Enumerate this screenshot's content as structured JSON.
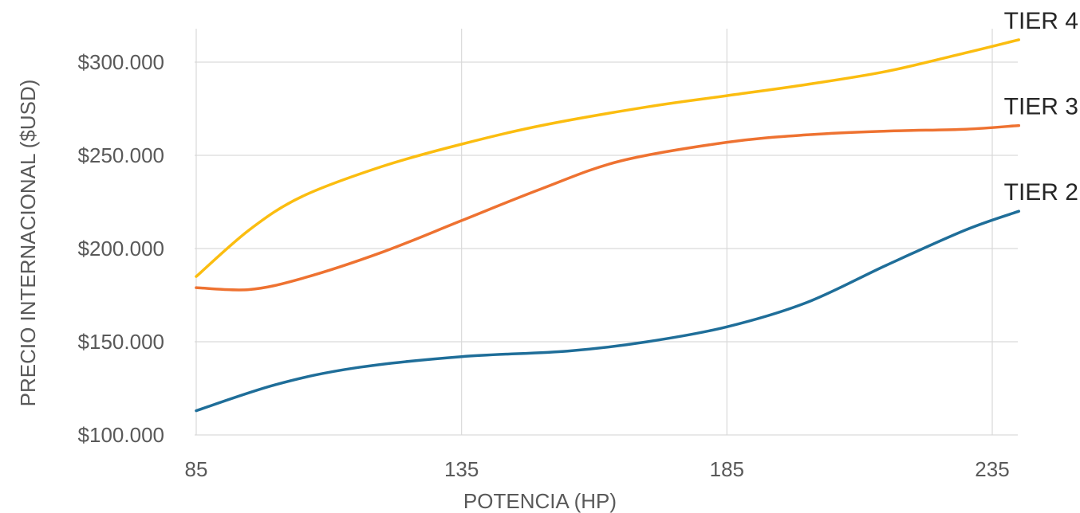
{
  "chart_data": {
    "type": "line",
    "title": "",
    "xlabel": "POTENCIA (HP)",
    "ylabel": "PRECIO INTERNACIONAL ($USD)",
    "xlim": [
      85,
      240
    ],
    "ylim": [
      100000,
      320000
    ],
    "x_ticks": [
      85,
      135,
      185,
      235
    ],
    "x_tick_labels": [
      "85",
      "135",
      "185",
      "235"
    ],
    "y_ticks": [
      100000,
      150000,
      200000,
      250000,
      300000
    ],
    "y_tick_labels": [
      "$100.000",
      "$150.000",
      "$200.000",
      "$250.000",
      "$300.000"
    ],
    "grid": true,
    "legend": "none",
    "series": [
      {
        "name": "TIER 2",
        "color": "#1f6e99",
        "x": [
          85,
          100,
          115,
          135,
          155,
          170,
          185,
          200,
          215,
          230,
          240
        ],
        "y": [
          113000,
          127000,
          136000,
          142000,
          145000,
          150000,
          158000,
          171000,
          191000,
          210000,
          220000
        ]
      },
      {
        "name": "TIER 3",
        "color": "#ee7231",
        "x": [
          85,
          95,
          105,
          120,
          135,
          150,
          165,
          185,
          200,
          215,
          230,
          240
        ],
        "y": [
          179000,
          178000,
          184000,
          198000,
          215000,
          232000,
          247000,
          257000,
          261000,
          263000,
          264000,
          266000
        ]
      },
      {
        "name": "TIER 4",
        "color": "#fbbd10",
        "x": [
          85,
          95,
          105,
          120,
          135,
          150,
          170,
          185,
          200,
          215,
          230,
          240
        ],
        "y": [
          185000,
          210000,
          228000,
          244000,
          256000,
          266000,
          276000,
          282000,
          288000,
          295000,
          305000,
          312000
        ]
      }
    ]
  }
}
